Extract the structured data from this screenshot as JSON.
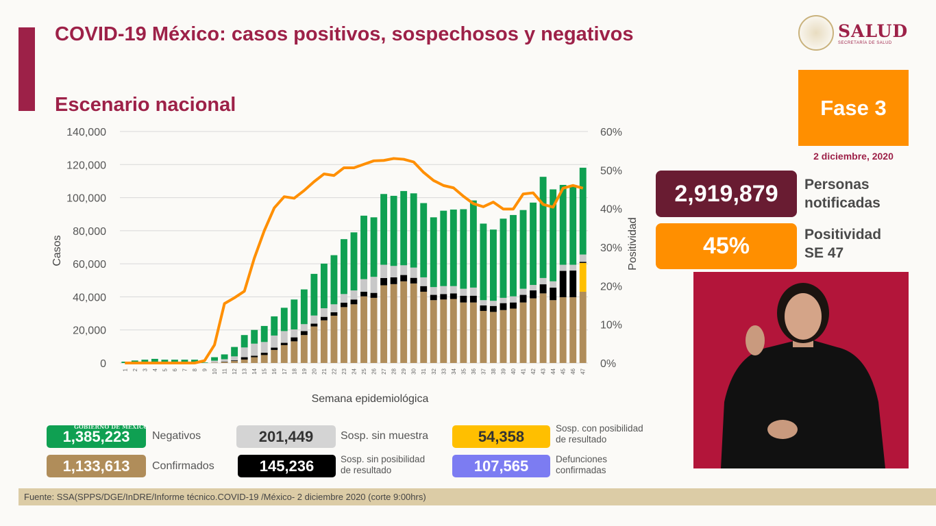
{
  "header": {
    "title": "COVID-19 México: casos positivos, sospechosos y negativos",
    "subtitle": "Escenario nacional",
    "logo_text": "SALUD",
    "logo_subtext": "SECRETARÍA DE SALUD"
  },
  "side": {
    "phase": "Fase 3",
    "date": "2 diciembre, 2020",
    "notified_value": "2,919,879",
    "notified_label_1": "Personas",
    "notified_label_2": "notificadas",
    "positivity_value": "45%",
    "positivity_label_1": "Positividad",
    "positivity_label_2": "SE 47"
  },
  "summary": [
    {
      "value": "1,385,223",
      "label": "Negativos",
      "color": "#0fa052"
    },
    {
      "value": "201,449",
      "label": "Sosp. sin muestra",
      "color": "#d4d4d4"
    },
    {
      "value": "54,358",
      "label_1": "Sosp. con posibilidad",
      "label_2": "de resultado",
      "color": "#ffbf00"
    },
    {
      "value": "1,133,613",
      "label": "Confirmados",
      "color": "#b08d5a"
    },
    {
      "value": "145,236",
      "label_1": "Sosp. sin posibilidad",
      "label_2": "de resultado",
      "color": "#000000"
    },
    {
      "value": "107,565",
      "label_1": "Defunciones",
      "label_2": "confirmadas",
      "color": "#7c7cf2"
    }
  ],
  "footer": "Fuente: SSA(SPPS/DGE/InDRE/Informe técnico.COVID-19 /México- 2 diciembre 2020 (corte 9:00hrs)",
  "watermark": "GOBIERNO DE MÉXICO",
  "chart_data": {
    "type": "bar",
    "stacked": true,
    "xlabel": "Semana epidemiológica",
    "ylabel": "Casos",
    "y2label": "Positividad",
    "ylim": [
      0,
      140000
    ],
    "y_ticks": [
      "0",
      "20,000",
      "40,000",
      "60,000",
      "80,000",
      "100,000",
      "120,000",
      "140,000"
    ],
    "y2lim": [
      0,
      60
    ],
    "y2_ticks": [
      "0%",
      "10%",
      "20%",
      "30%",
      "40%",
      "50%",
      "60%"
    ],
    "grid": true,
    "categories": [
      "1",
      "2",
      "3",
      "4",
      "5",
      "6",
      "7",
      "8",
      "9",
      "10",
      "11",
      "12",
      "13",
      "14",
      "15",
      "16",
      "17",
      "18",
      "19",
      "20",
      "21",
      "22",
      "23",
      "24",
      "25",
      "26",
      "27",
      "28",
      "29",
      "30",
      "31",
      "32",
      "33",
      "34",
      "35",
      "36",
      "37",
      "38",
      "39",
      "40",
      "41",
      "42",
      "43",
      "44",
      "45",
      "46",
      "47"
    ],
    "series": [
      {
        "key": "confirmados",
        "color": "#b08d5a",
        "values": [
          0,
          0,
          0,
          0,
          0,
          0,
          0,
          0,
          0,
          200,
          600,
          1200,
          2100,
          3500,
          4800,
          7900,
          10800,
          13100,
          16900,
          22100,
          25800,
          28600,
          33800,
          35500,
          40300,
          39400,
          47000,
          47700,
          49400,
          48100,
          43100,
          38000,
          38400,
          38700,
          36600,
          36600,
          31500,
          30900,
          32000,
          32900,
          36600,
          39100,
          42100,
          38000,
          39800,
          39800,
          43100
        ]
      },
      {
        "key": "sosp_con_posibilidad",
        "color": "#ffbf00",
        "values": [
          0,
          0,
          0,
          0,
          0,
          0,
          0,
          0,
          0,
          0,
          0,
          0,
          0,
          0,
          0,
          0,
          0,
          0,
          0,
          0,
          0,
          0,
          0,
          0,
          0,
          0,
          0,
          0,
          0,
          0,
          0,
          0,
          0,
          0,
          0,
          0,
          0,
          0,
          0,
          0,
          0,
          0,
          0,
          0,
          0,
          0,
          17400
        ]
      },
      {
        "key": "sosp_sin_posibilidad",
        "color": "#000000",
        "values": [
          0,
          0,
          0,
          0,
          0,
          0,
          0,
          0,
          0,
          0,
          200,
          400,
          1400,
          900,
          1400,
          1400,
          1400,
          2400,
          2400,
          1700,
          2100,
          2100,
          2700,
          2900,
          2800,
          3000,
          4400,
          4100,
          3800,
          3400,
          3400,
          3200,
          3300,
          3400,
          4100,
          4100,
          3300,
          3600,
          4200,
          3700,
          4600,
          4800,
          5500,
          7600,
          15900,
          16100,
          700
        ]
      },
      {
        "key": "sosp_sin_muestra",
        "color": "#c8c8c8",
        "values": [
          0,
          0,
          0,
          0,
          0,
          0,
          0,
          0,
          0,
          1200,
          1500,
          2400,
          5900,
          7300,
          6500,
          7300,
          7100,
          4800,
          4200,
          4900,
          5200,
          4800,
          5200,
          5500,
          7600,
          9700,
          8000,
          6900,
          5900,
          6200,
          5300,
          4700,
          4800,
          4400,
          4200,
          4900,
          3200,
          3100,
          3200,
          3700,
          3700,
          3300,
          3800,
          3800,
          3700,
          3500,
          4400
        ]
      },
      {
        "key": "negativos",
        "color": "#0fa052",
        "values": [
          800,
          1500,
          2000,
          2500,
          2000,
          2000,
          2000,
          2000,
          300,
          2100,
          2900,
          5700,
          7500,
          8300,
          9700,
          11600,
          14100,
          18100,
          21000,
          25200,
          27000,
          29700,
          33200,
          35100,
          38400,
          36000,
          42800,
          42400,
          44900,
          44900,
          44900,
          42200,
          45600,
          46300,
          48100,
          52700,
          46300,
          43100,
          47900,
          49200,
          47600,
          49800,
          61200,
          55600,
          48300,
          48300,
          52500
        ]
      }
    ],
    "line": {
      "key": "positividad",
      "color": "#ff8f00",
      "axis": "right",
      "values": [
        0,
        0,
        0,
        0,
        0,
        0,
        0,
        0,
        0.6,
        4.7,
        15.4,
        16.9,
        18.6,
        27.2,
        34.3,
        40.2,
        43.1,
        42.7,
        44.7,
        47,
        49,
        48.6,
        50.6,
        50.6,
        51.5,
        52.4,
        52.5,
        53,
        52.8,
        52.1,
        49.4,
        47.3,
        46,
        45.4,
        43.2,
        41.3,
        40.5,
        41.7,
        39.9,
        39.9,
        43.8,
        44.1,
        41.1,
        40.4,
        45.3,
        46,
        45.3
      ]
    }
  }
}
